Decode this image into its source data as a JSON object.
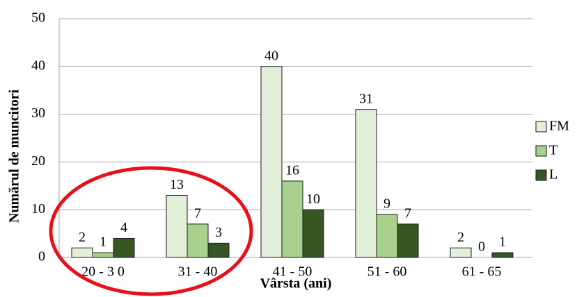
{
  "chart_data": {
    "type": "bar",
    "x_label": "Vârsta (ani)",
    "y_label": "Numărul de muncitori",
    "categories": [
      "20 - 3 0",
      "31 - 40",
      "41 - 50",
      "51 - 60",
      "61 - 65"
    ],
    "series": [
      {
        "name": "FM",
        "color": "#e2efd9",
        "values": [
          2,
          13,
          40,
          31,
          2
        ]
      },
      {
        "name": "T",
        "color": "#a9d18e",
        "values": [
          1,
          7,
          16,
          9,
          0
        ]
      },
      {
        "name": "L",
        "color": "#375623",
        "values": [
          4,
          3,
          10,
          7,
          1
        ]
      }
    ],
    "ylim": [
      0,
      50
    ],
    "yticks": [
      0,
      10,
      20,
      30,
      40,
      50
    ],
    "grid": true,
    "legend": "right"
  }
}
